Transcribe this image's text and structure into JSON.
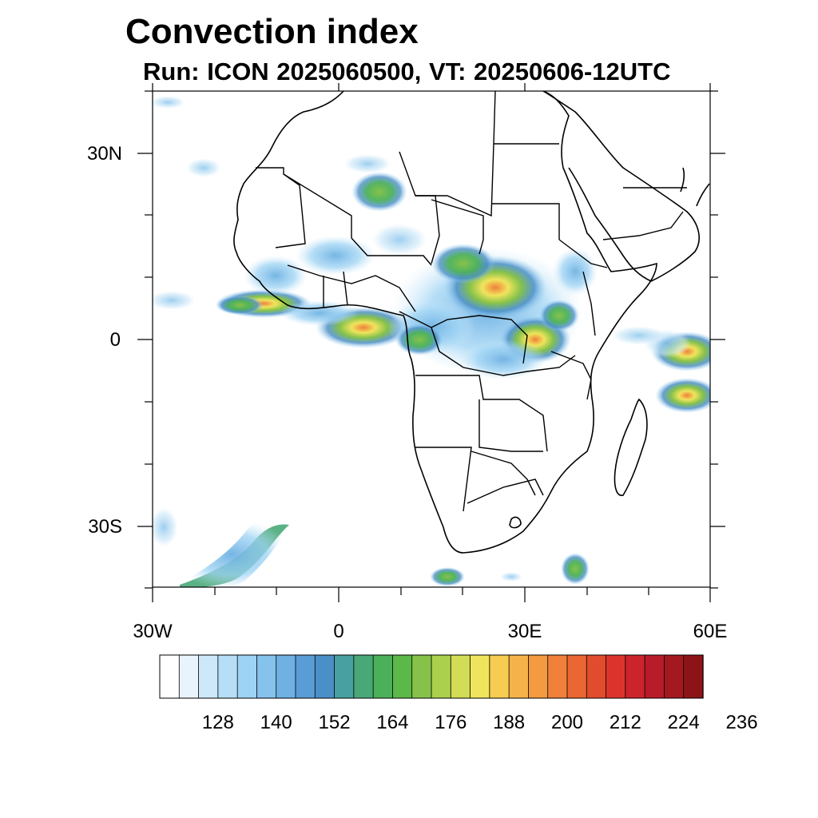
{
  "title": "Convection index",
  "subtitle": "Run: ICON 2025060500,  VT: 20250606-12UTC",
  "map": {
    "region": "Africa",
    "lon_range": [
      -30,
      60
    ],
    "lat_range": [
      -40,
      40
    ],
    "lat_ticks": [
      {
        "value": 30,
        "label": "30N"
      },
      {
        "value": 0,
        "label": "0"
      },
      {
        "value": -30,
        "label": "30S"
      }
    ],
    "lon_ticks": [
      {
        "value": -30,
        "label": "30W"
      },
      {
        "value": 0,
        "label": "0"
      },
      {
        "value": 30,
        "label": "30E"
      },
      {
        "value": 60,
        "label": "60E"
      }
    ]
  },
  "colorbar": {
    "colors": [
      "#ffffff",
      "#e8f4fc",
      "#cde8f8",
      "#b6def6",
      "#9dd3f4",
      "#85c2ec",
      "#6eb1e2",
      "#5a9cd6",
      "#4b8fc8",
      "#48a0a0",
      "#48a878",
      "#4cb05a",
      "#5cb848",
      "#86c24a",
      "#aad04e",
      "#d2dc56",
      "#f0e45c",
      "#f6cc52",
      "#f6b24a",
      "#f49a40",
      "#f0803a",
      "#ea6632",
      "#e24c2e",
      "#dc342c",
      "#cc242c",
      "#b81c28",
      "#a41820",
      "#8c1418"
    ],
    "labels": [
      "128",
      "140",
      "152",
      "164",
      "176",
      "188",
      "200",
      "212",
      "224",
      "236"
    ]
  },
  "chart_data": {
    "type": "heatmap",
    "title": "Convection index",
    "subtitle": "Run: ICON 2025060500,  VT: 20250606-12UTC",
    "x_range": [
      -30,
      60
    ],
    "y_range": [
      -40,
      40
    ],
    "color_levels": [
      120,
      124,
      128,
      132,
      136,
      140,
      144,
      148,
      152,
      156,
      160,
      164,
      168,
      172,
      176,
      180,
      184,
      188,
      192,
      196,
      200,
      204,
      208,
      212,
      216,
      220,
      224,
      228,
      232,
      236,
      240
    ]
  }
}
